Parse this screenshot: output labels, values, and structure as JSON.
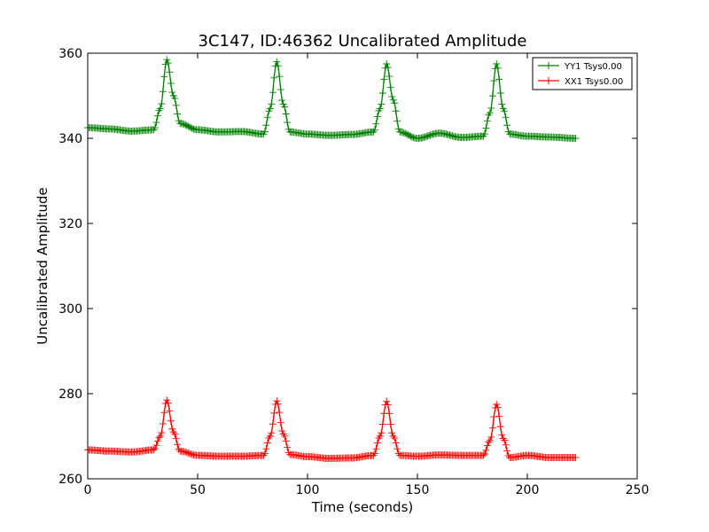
{
  "chart_data": {
    "type": "line",
    "title": "3C147, ID:46362 Uncalibrated Amplitude",
    "xlabel": "Time (seconds)",
    "ylabel": "Uncalibrated Amplitude",
    "xlim": [
      0,
      250
    ],
    "ylim": [
      260,
      360
    ],
    "xticks": [
      "0",
      "50",
      "100",
      "150",
      "200",
      "250"
    ],
    "yticks": [
      "260",
      "280",
      "300",
      "320",
      "340",
      "360"
    ],
    "grid": false,
    "legend_position": "top-right",
    "marker": "+",
    "series": [
      {
        "name": "YY1 Tsys0.00",
        "color": "#008000",
        "x": [
          0,
          10,
          20,
          30,
          33,
          36,
          39,
          42,
          50,
          60,
          70,
          80,
          83,
          86,
          89,
          92,
          100,
          110,
          120,
          130,
          133,
          136,
          139,
          142,
          150,
          160,
          170,
          180,
          183,
          186,
          189,
          192,
          200,
          210,
          222
        ],
        "y": [
          342.5,
          342.2,
          341.7,
          342,
          347,
          358.5,
          350,
          343.5,
          342,
          341.5,
          341.6,
          341,
          347,
          358,
          348,
          341.5,
          341,
          340.7,
          340.9,
          341.5,
          347,
          357.5,
          349,
          341.5,
          340,
          341.2,
          340.2,
          340.5,
          346,
          357.5,
          347,
          341,
          340.5,
          340.3,
          340
        ]
      },
      {
        "name": "XX1 Tsys0.00",
        "color": "#ff0000",
        "x": [
          0,
          10,
          20,
          30,
          33,
          36,
          39,
          42,
          50,
          60,
          70,
          80,
          83,
          86,
          89,
          92,
          100,
          110,
          120,
          130,
          133,
          136,
          139,
          142,
          150,
          160,
          170,
          180,
          183,
          186,
          189,
          192,
          200,
          210,
          222
        ],
        "y": [
          266.8,
          266.5,
          266.3,
          266.8,
          270,
          278.5,
          271,
          266.5,
          265.5,
          265.3,
          265.3,
          265.5,
          270,
          278.3,
          270.5,
          265.7,
          265.2,
          264.8,
          264.9,
          265.5,
          270,
          278.2,
          270,
          265.5,
          265.3,
          265.6,
          265.5,
          265.5,
          269,
          277.5,
          269.5,
          265,
          265.5,
          265,
          265
        ]
      }
    ]
  }
}
